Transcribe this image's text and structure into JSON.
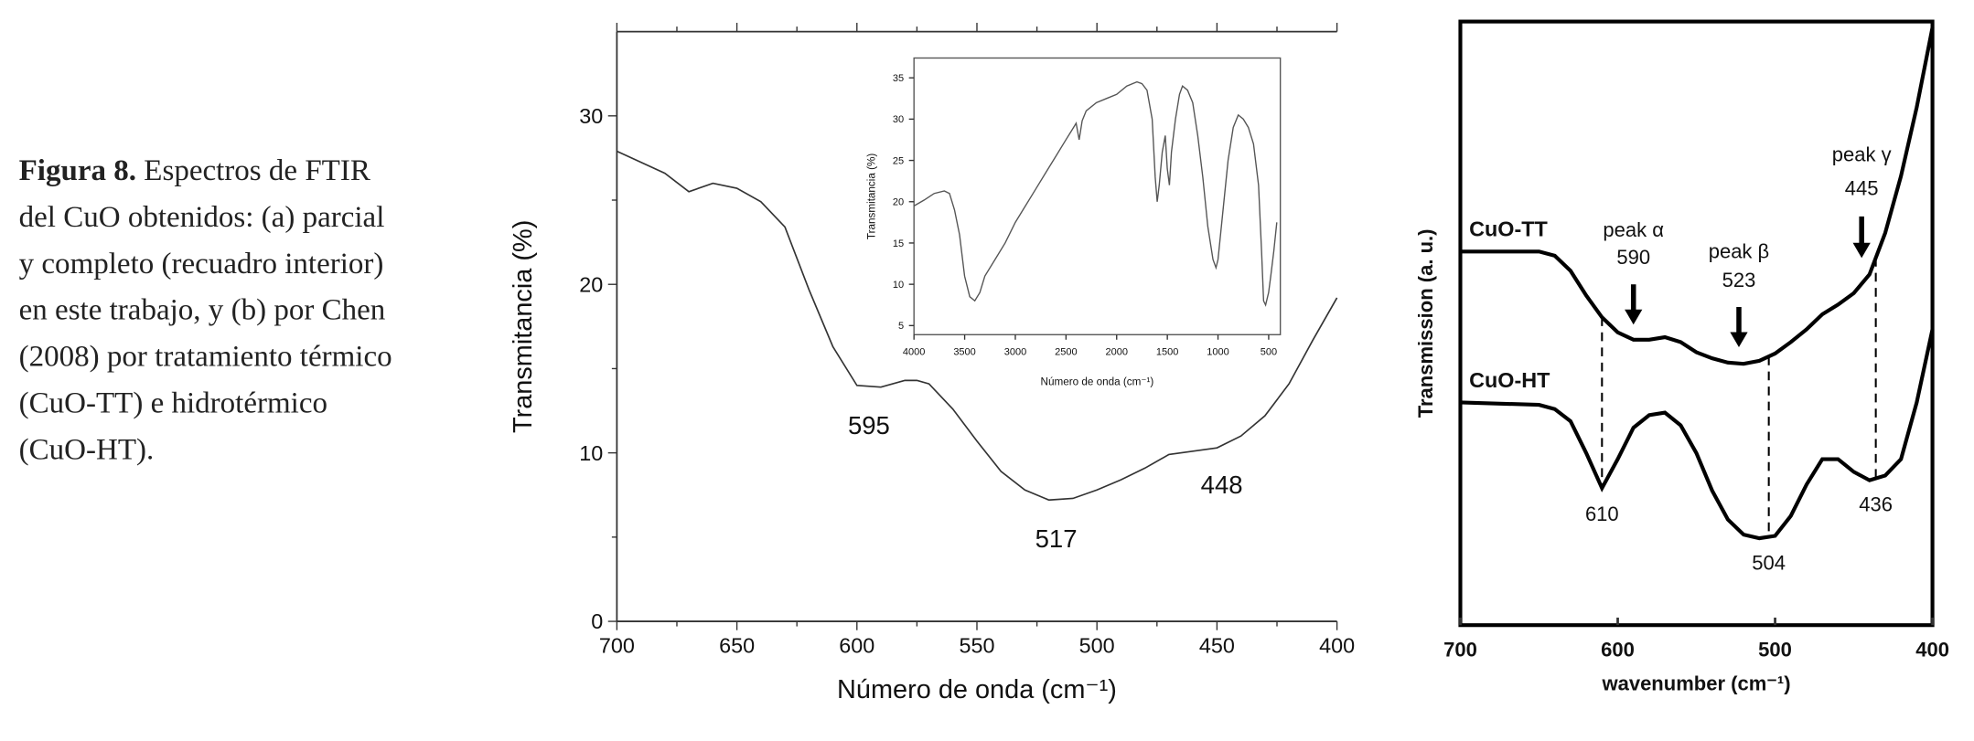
{
  "caption": {
    "label": "Figura 8.",
    "lines": [
      "Espectros de FTIR",
      "del CuO obtenidos: (a) parcial",
      "y completo (recuadro interior)",
      "en este trabajo, y (b) por Chen",
      "(2008) por tratamiento térmico",
      "(CuO-TT) e hidrotérmico",
      "(CuO-HT)."
    ]
  },
  "chart_data": [
    {
      "type": "line",
      "xlabel": "Número de onda (cm⁻¹)",
      "ylabel": "Transmitancia (%)",
      "color": "#333333",
      "x": [
        700,
        680,
        670,
        660,
        650,
        640,
        630,
        620,
        610,
        600,
        590,
        580,
        575,
        570,
        560,
        550,
        540,
        530,
        520,
        510,
        500,
        490,
        480,
        470,
        460,
        450,
        440,
        430,
        420,
        410,
        400
      ],
      "values": [
        27.9,
        26.6,
        25.5,
        26.0,
        25.7,
        24.9,
        23.4,
        19.7,
        16.3,
        14.0,
        13.9,
        14.3,
        14.3,
        14.1,
        12.6,
        10.7,
        8.9,
        7.8,
        7.2,
        7.3,
        7.8,
        8.4,
        9.1,
        9.9,
        10.1,
        10.3,
        11.0,
        12.2,
        14.1,
        16.7,
        19.2
      ],
      "xlim": [
        700,
        400
      ],
      "ylim": [
        0,
        35
      ],
      "xticks": [
        700,
        650,
        600,
        550,
        500,
        450,
        400
      ],
      "xminorticks": [
        675,
        625,
        575,
        525,
        475,
        425
      ],
      "yticks": [
        0,
        10,
        20,
        30
      ],
      "yminorticks": [
        5,
        15,
        25
      ],
      "annotations": [
        595,
        517,
        448
      ]
    },
    {
      "type": "line",
      "xlabel": "Número de onda (cm⁻¹)",
      "ylabel": "Transmitancia (%)",
      "color": "#555555",
      "x": [
        4000,
        3900,
        3800,
        3700,
        3650,
        3600,
        3550,
        3500,
        3450,
        3400,
        3350,
        3300,
        3200,
        3100,
        3000,
        2900,
        2800,
        2700,
        2600,
        2500,
        2450,
        2400,
        2370,
        2340,
        2300,
        2200,
        2100,
        2000,
        1900,
        1800,
        1750,
        1700,
        1650,
        1620,
        1600,
        1580,
        1550,
        1520,
        1500,
        1480,
        1460,
        1420,
        1380,
        1350,
        1300,
        1250,
        1200,
        1150,
        1100,
        1050,
        1020,
        1000,
        950,
        900,
        850,
        800,
        750,
        700,
        650,
        600,
        570,
        550,
        530,
        500,
        480,
        450,
        420
      ],
      "values": [
        19.5,
        20.2,
        21,
        21.3,
        21,
        19,
        16,
        11,
        8.5,
        8,
        9,
        11,
        13,
        15,
        17.5,
        19.5,
        21.5,
        23.5,
        25.5,
        27.5,
        28.5,
        29.5,
        27.5,
        29.8,
        31,
        32,
        32.5,
        33,
        34,
        34.5,
        34.3,
        33.5,
        30,
        23,
        20,
        22,
        26,
        28,
        24,
        22,
        26,
        30,
        33,
        34,
        33.5,
        32,
        28,
        23,
        17,
        13,
        12,
        13,
        19,
        25,
        29,
        30.5,
        30,
        29,
        27,
        22,
        14,
        8,
        7.5,
        9,
        11,
        14,
        17.5
      ],
      "xlim": [
        4000,
        385
      ],
      "ylim": [
        3.9,
        37.4
      ],
      "xticks": [
        4000,
        3500,
        3000,
        2500,
        2000,
        1500,
        1000,
        500
      ],
      "yticks": [
        5,
        10,
        15,
        20,
        25,
        30,
        35
      ]
    },
    {
      "type": "line",
      "xlabel": "wavenumber (cm⁻¹)",
      "ylabel": "Transmission (a. u.)",
      "x": [
        700,
        650,
        640,
        630,
        620,
        610,
        600,
        590,
        580,
        570,
        560,
        550,
        540,
        530,
        520,
        510,
        500,
        490,
        480,
        470,
        460,
        450,
        440,
        430,
        420,
        410,
        400
      ],
      "series": [
        {
          "name": "CuO-TT",
          "color": "#000000",
          "values": [
            61.9,
            61.9,
            61.2,
            58.7,
            54.6,
            51,
            48.5,
            47.3,
            47.3,
            47.7,
            46.9,
            45.2,
            44.2,
            43.5,
            43.3,
            43.8,
            45,
            46.9,
            49,
            51.5,
            53.1,
            55,
            58.1,
            65,
            74.4,
            85.8,
            99
          ]
        },
        {
          "name": "CuO-HT",
          "color": "#000000",
          "values": [
            36.9,
            36.5,
            35.8,
            33.8,
            28.5,
            22.7,
            27.5,
            32.7,
            34.8,
            35.2,
            33.1,
            28.5,
            22.3,
            17.5,
            15,
            14.4,
            14.8,
            18.1,
            23.3,
            27.5,
            27.5,
            25.4,
            24,
            24.8,
            27.5,
            36.9,
            49
          ]
        }
      ],
      "xlim": [
        700,
        400
      ],
      "ylim": [
        0,
        100
      ],
      "xticks": [
        700,
        600,
        500,
        400
      ],
      "peaks": [
        {
          "name": "peak α",
          "value": 590
        },
        {
          "name": "peak β",
          "value": 523
        },
        {
          "name": "peak γ",
          "value": 445
        }
      ],
      "dashed": [
        610,
        504,
        436
      ]
    }
  ]
}
